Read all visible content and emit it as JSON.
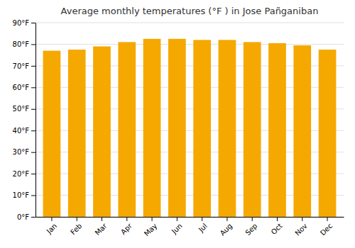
{
  "chart_data": {
    "type": "bar",
    "title": "Average monthly temperatures (°F ) in Jose Pañganiban",
    "categories": [
      "Jan",
      "Feb",
      "Mar",
      "Apr",
      "May",
      "Jun",
      "Jul",
      "Aug",
      "Sep",
      "Oct",
      "Nov",
      "Dec"
    ],
    "values": [
      77.0,
      77.5,
      79.0,
      81.0,
      82.5,
      82.5,
      82.0,
      82.0,
      81.0,
      80.5,
      79.5,
      77.5
    ],
    "color": "#F5A800",
    "ylim": [
      0,
      90
    ],
    "yticks": [
      {
        "value": 0,
        "label": "0°F"
      },
      {
        "value": 10,
        "label": "10°F"
      },
      {
        "value": 20,
        "label": "20°F"
      },
      {
        "value": 30,
        "label": "30°F"
      },
      {
        "value": 40,
        "label": "40°F"
      },
      {
        "value": 50,
        "label": "50°F"
      },
      {
        "value": 60,
        "label": "60°F"
      },
      {
        "value": 70,
        "label": "70°F"
      },
      {
        "value": 80,
        "label": "80°F"
      },
      {
        "value": 90,
        "label": "90°F"
      }
    ],
    "grid": true
  }
}
